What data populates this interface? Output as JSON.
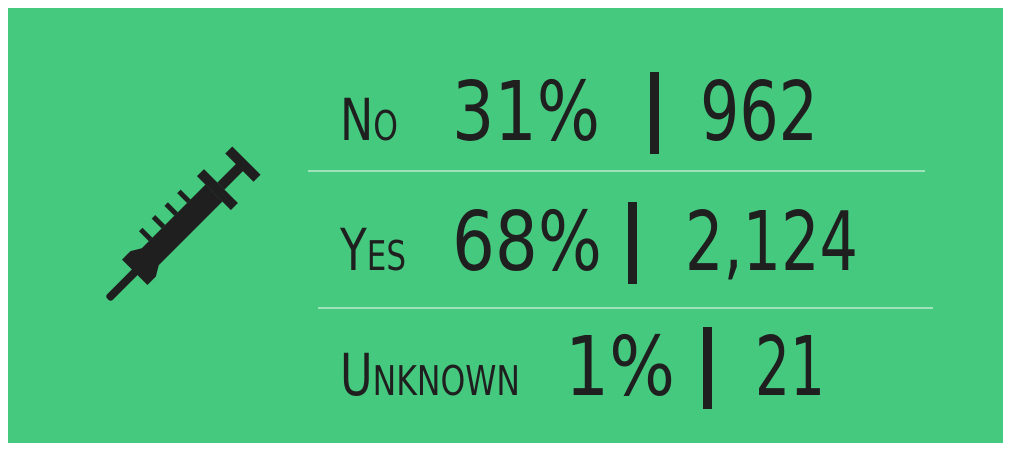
{
  "rows": [
    {
      "label": "No",
      "percent": "31%",
      "count": "962"
    },
    {
      "label": "Yes",
      "percent": "68%",
      "count": "2,124"
    },
    {
      "label": "Unknown",
      "percent": "1%",
      "count": "21"
    }
  ]
}
